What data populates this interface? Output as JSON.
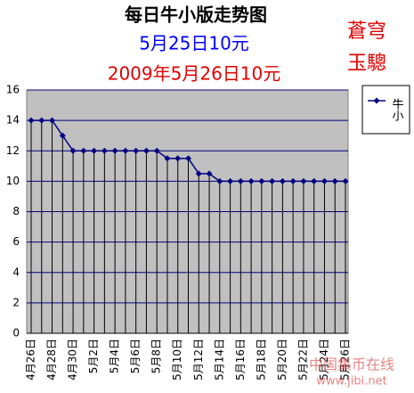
{
  "chart_data": {
    "type": "line",
    "title": "每日牛小版走势图",
    "subtitle": "5月25日10元",
    "subtitle2": "2009年5月26日10元",
    "annotation": "蒼穹",
    "annotation2": "玉驄",
    "watermark": "中国集币在线",
    "watermark2": "www.jibi.net",
    "categories": [
      "4月26日",
      null,
      "4月28日",
      null,
      "4月30日",
      null,
      "5月2日",
      null,
      "5月4日",
      null,
      "5月6日",
      null,
      "5月8日",
      null,
      "5月10日",
      null,
      "5月12日",
      null,
      "5月14日",
      null,
      "5月16日",
      null,
      "5月18日",
      null,
      "5月20日",
      null,
      "5月22日",
      null,
      "5月24日",
      null,
      "5月26日"
    ],
    "series": [
      {
        "name": "牛小",
        "color": "#000080",
        "values": [
          14,
          14,
          14,
          13,
          12,
          12,
          12,
          12,
          12,
          12,
          12,
          12,
          12,
          11.5,
          11.5,
          11.5,
          10.5,
          10.5,
          10,
          10,
          10,
          10,
          10,
          10,
          10,
          10,
          10,
          10,
          10,
          10,
          10
        ]
      }
    ],
    "ylim": [
      0,
      16
    ],
    "yticks": [
      0,
      2,
      4,
      6,
      8,
      10,
      12,
      14,
      16
    ],
    "grid": true,
    "legend": "right"
  }
}
